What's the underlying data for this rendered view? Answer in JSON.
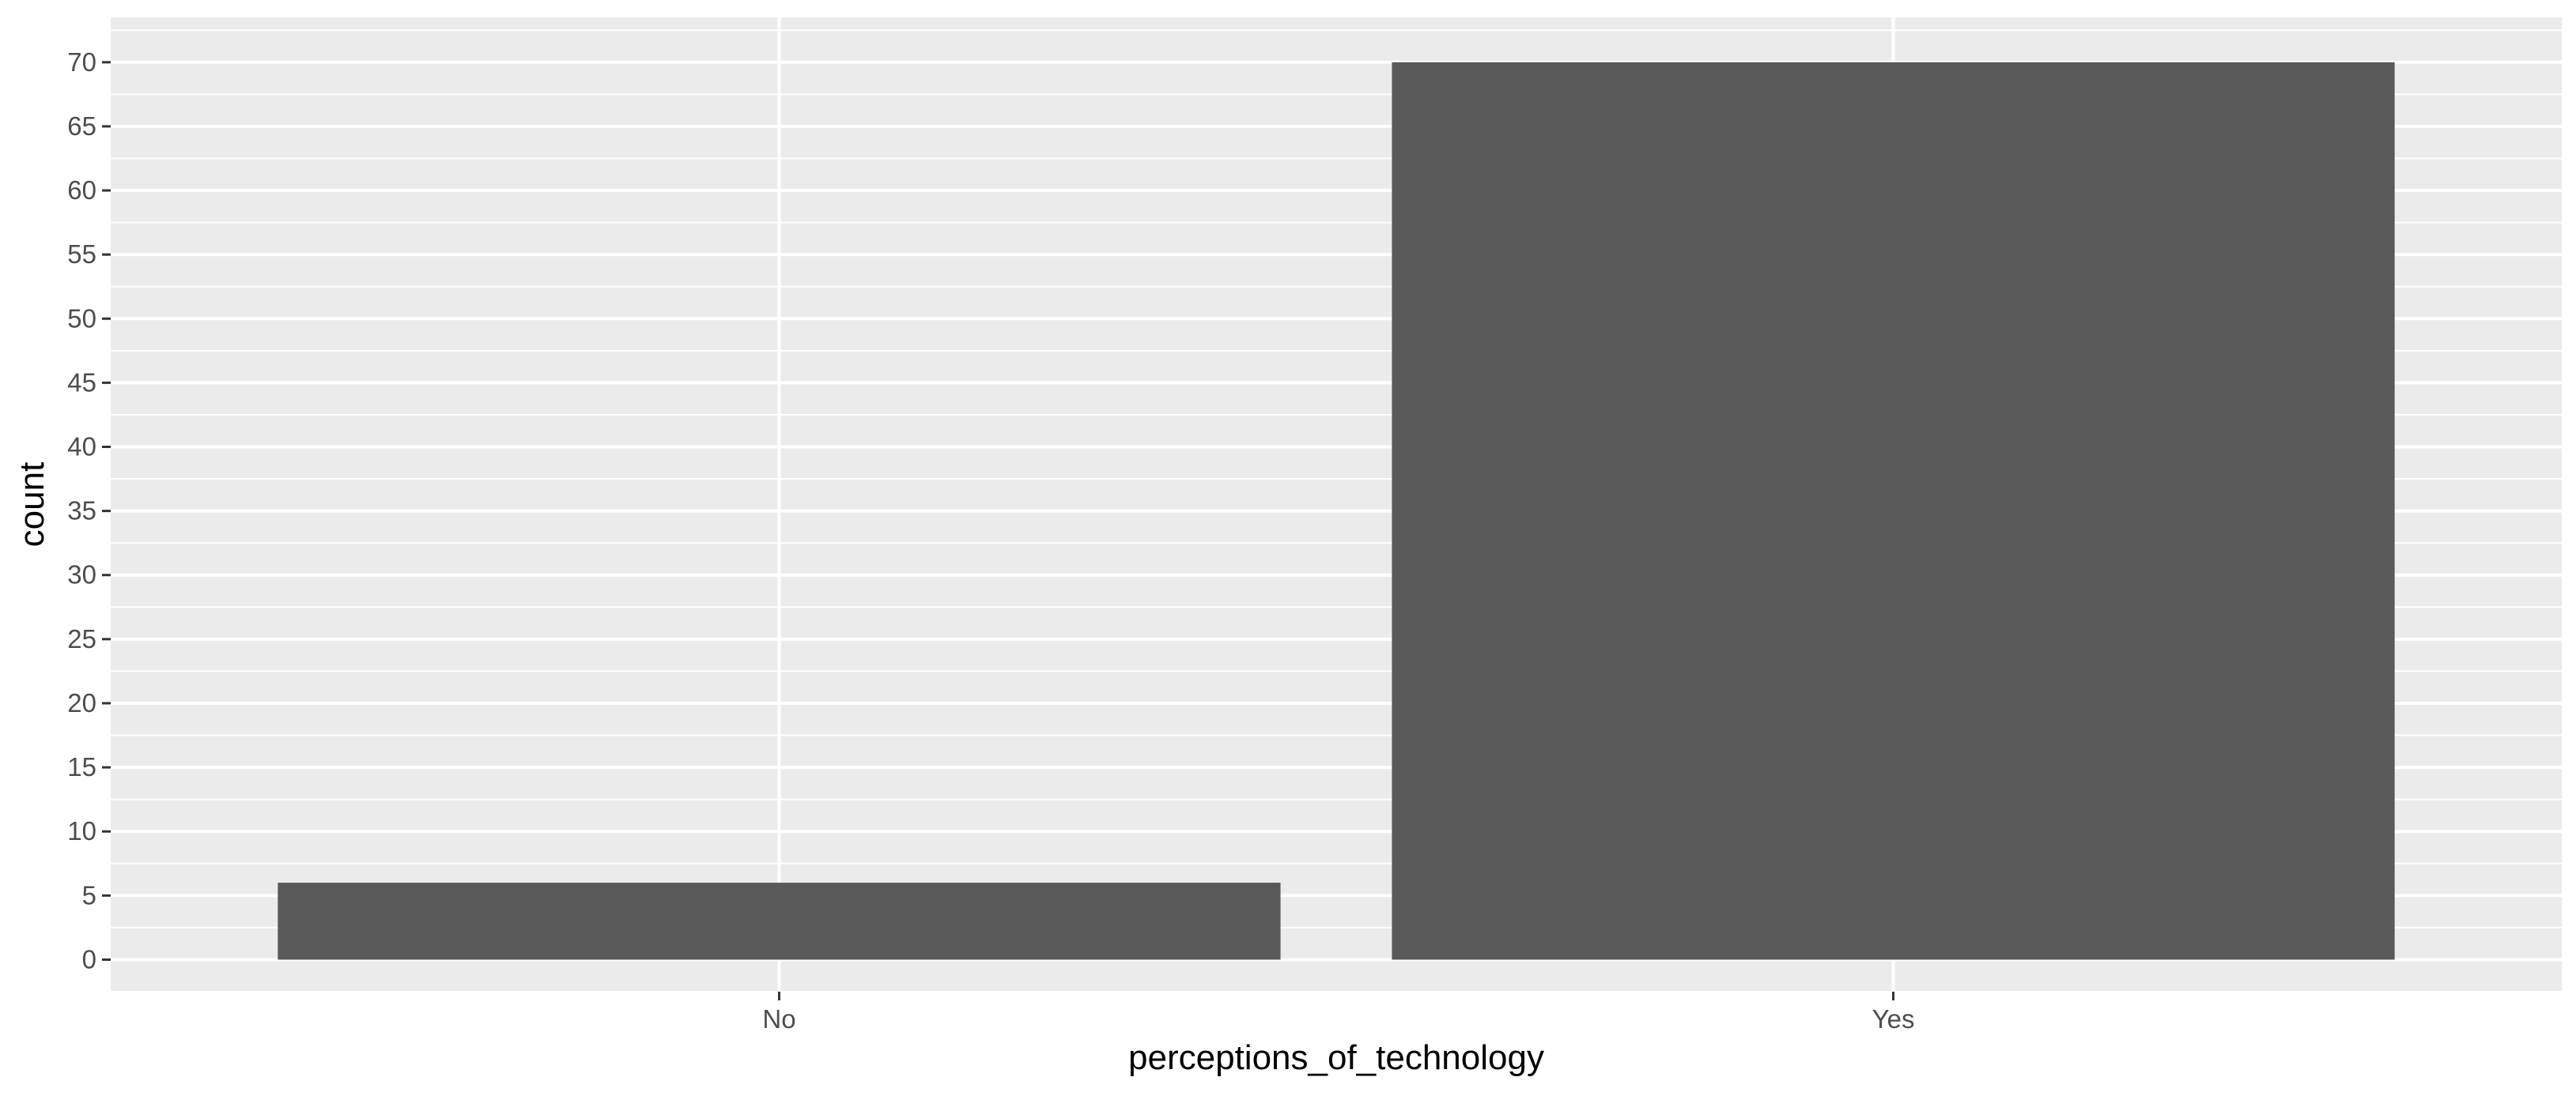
{
  "chart_data": {
    "type": "bar",
    "categories": [
      "No",
      "Yes"
    ],
    "values": [
      6,
      70
    ],
    "title": "",
    "xlabel": "perceptions_of_technology",
    "ylabel": "count",
    "ylim": [
      -2.5,
      73.5
    ],
    "y_ticks": [
      0,
      5,
      10,
      15,
      20,
      25,
      30,
      35,
      40,
      45,
      50,
      55,
      60,
      65,
      70
    ],
    "grid": true,
    "legend": "none",
    "colors": {
      "panel_background": "#ebebeb",
      "grid_line": "#ffffff",
      "bar_fill": "#595959",
      "tick_label": "#4d4d4d",
      "tick_mark": "#333333",
      "axis_title": "#000000"
    }
  }
}
